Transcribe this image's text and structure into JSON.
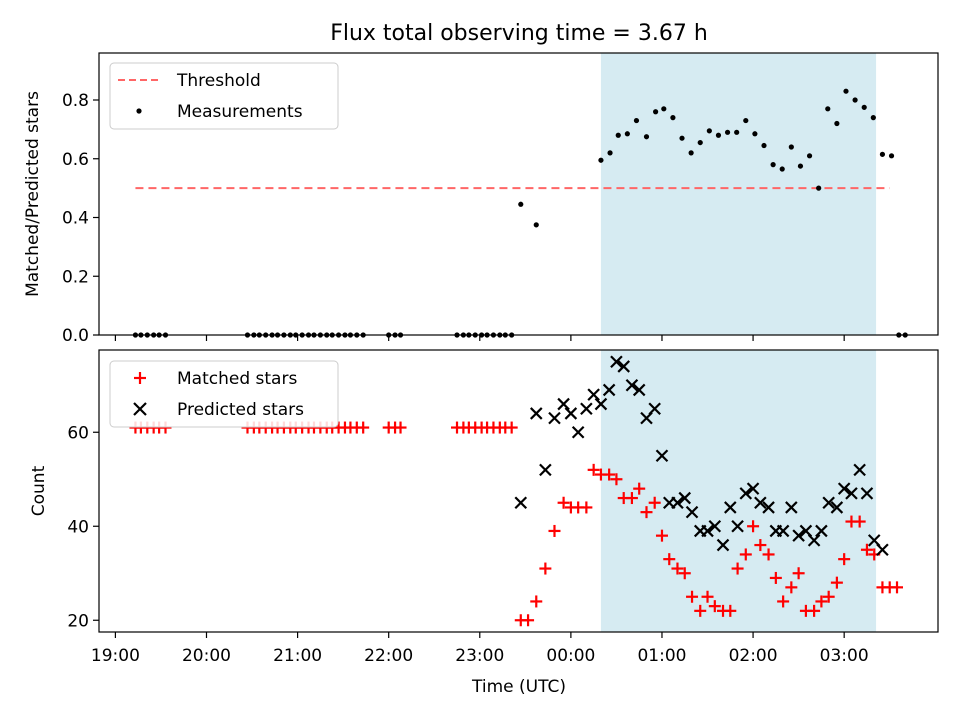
{
  "chart_data": [
    {
      "type": "scatter",
      "title": "Flux total observing time = 3.67 h",
      "ylabel": "Matched/Predicted stars",
      "xlabel": "",
      "xlim_hours": [
        18.82,
        28.03
      ],
      "ylim": [
        0.0,
        0.96
      ],
      "yticks": [
        0.0,
        0.2,
        0.4,
        0.6,
        0.8
      ],
      "ytick_labels": [
        "0.0",
        "0.2",
        "0.4",
        "0.6",
        "0.8"
      ],
      "shaded_interval_hours": [
        24.33,
        27.35
      ],
      "shaded_color": "#add8e6",
      "grid": false,
      "legend_position": "upper-left",
      "threshold": {
        "name": "Threshold",
        "value": 0.5,
        "x_range_hours": [
          19.22,
          27.5
        ],
        "color": "#ff6666",
        "style": "dashed"
      },
      "series": [
        {
          "name": "Measurements",
          "marker": "dot",
          "color": "#000000",
          "x_hours": [
            19.22,
            19.28,
            19.35,
            19.42,
            19.48,
            19.55,
            20.45,
            20.52,
            20.58,
            20.65,
            20.72,
            20.78,
            20.85,
            20.92,
            20.98,
            21.05,
            21.12,
            21.18,
            21.25,
            21.32,
            21.38,
            21.45,
            21.52,
            21.58,
            21.65,
            21.72,
            22.0,
            22.07,
            22.13,
            22.75,
            22.82,
            22.88,
            22.95,
            23.02,
            23.08,
            23.15,
            23.22,
            23.28,
            23.35,
            23.45,
            23.62,
            24.33,
            24.43,
            24.52,
            24.62,
            24.72,
            24.83,
            24.93,
            25.02,
            25.12,
            25.22,
            25.32,
            25.42,
            25.52,
            25.62,
            25.72,
            25.82,
            25.92,
            26.02,
            26.12,
            26.22,
            26.32,
            26.42,
            26.52,
            26.62,
            26.72,
            26.82,
            26.92,
            27.02,
            27.12,
            27.22,
            27.32,
            27.42,
            27.52,
            27.6,
            27.67
          ],
          "y": [
            0,
            0,
            0,
            0,
            0,
            0,
            0,
            0,
            0,
            0,
            0,
            0,
            0,
            0,
            0,
            0,
            0,
            0,
            0,
            0,
            0,
            0,
            0,
            0,
            0,
            0,
            0,
            0,
            0,
            0,
            0,
            0,
            0,
            0,
            0,
            0,
            0,
            0,
            0,
            0.445,
            0.375,
            0.595,
            0.62,
            0.68,
            0.685,
            0.73,
            0.675,
            0.76,
            0.77,
            0.74,
            0.67,
            0.62,
            0.655,
            0.695,
            0.68,
            0.69,
            0.69,
            0.73,
            0.685,
            0.645,
            0.58,
            0.565,
            0.64,
            0.575,
            0.61,
            0.5,
            0.77,
            0.72,
            0.83,
            0.8,
            0.775,
            0.74,
            0.615,
            0.61,
            0.0,
            0.0
          ]
        }
      ],
      "series_ordered_by_x_note_removed": true
    },
    {
      "type": "scatter",
      "title": "",
      "ylabel": "Count",
      "xlabel": "Time (UTC)",
      "xlim_hours": [
        18.82,
        28.03
      ],
      "ylim": [
        17.5,
        77.5
      ],
      "yticks": [
        20,
        40,
        60
      ],
      "ytick_labels": [
        "20",
        "40",
        "60"
      ],
      "xticks_hours": [
        19,
        20,
        21,
        22,
        23,
        24,
        25,
        26,
        27
      ],
      "xtick_labels": [
        "19:00",
        "20:00",
        "21:00",
        "22:00",
        "23:00",
        "00:00",
        "01:00",
        "02:00",
        "03:00"
      ],
      "shaded_interval_hours": [
        24.33,
        27.35
      ],
      "shaded_color": "#add8e6",
      "grid": false,
      "legend_position": "upper-left",
      "series": [
        {
          "name": "Matched stars",
          "marker": "plus",
          "color": "#ff0000",
          "x_hours": [
            19.22,
            19.28,
            19.35,
            19.42,
            19.48,
            19.55,
            20.45,
            20.52,
            20.58,
            20.65,
            20.72,
            20.78,
            20.85,
            20.92,
            20.98,
            21.05,
            21.12,
            21.18,
            21.25,
            21.32,
            21.38,
            21.45,
            21.52,
            21.58,
            21.65,
            21.72,
            22.0,
            22.07,
            22.13,
            22.75,
            22.82,
            22.88,
            22.95,
            23.02,
            23.08,
            23.15,
            23.22,
            23.28,
            23.35,
            23.45,
            23.53,
            23.62,
            23.72,
            23.82,
            23.92,
            24.0,
            24.08,
            24.17,
            24.25,
            24.33,
            24.42,
            24.5,
            24.58,
            24.67,
            24.75,
            24.83,
            24.92,
            25.0,
            25.08,
            25.17,
            25.25,
            25.33,
            25.42,
            25.5,
            25.58,
            25.67,
            25.75,
            25.83,
            25.92,
            26.0,
            26.08,
            26.17,
            26.25,
            26.33,
            26.42,
            26.5,
            26.58,
            26.67,
            26.75,
            26.83,
            26.92,
            27.0,
            27.08,
            27.17,
            27.25,
            27.33,
            27.42,
            27.5,
            27.58
          ],
          "y": [
            61,
            61,
            61,
            61,
            61,
            61,
            61,
            61,
            61,
            61,
            61,
            61,
            61,
            61,
            61,
            61,
            61,
            61,
            61,
            61,
            61,
            61,
            61,
            61,
            61,
            61,
            61,
            61,
            61,
            61,
            61,
            61,
            61,
            61,
            61,
            61,
            61,
            61,
            61,
            20,
            20,
            24,
            31,
            39,
            45,
            44,
            44,
            44,
            52,
            51,
            51,
            50,
            46,
            46,
            48,
            43,
            45,
            38,
            33,
            31,
            30,
            25,
            22,
            25,
            23,
            22,
            22,
            31,
            34,
            40,
            36,
            34,
            29,
            24,
            27,
            30,
            22,
            22,
            24,
            25,
            28,
            33,
            41,
            41,
            35,
            34,
            27,
            27,
            27
          ]
        },
        {
          "name": "Predicted stars",
          "marker": "x",
          "color": "#000000",
          "x_hours": [
            23.45,
            23.62,
            23.72,
            23.82,
            23.92,
            24.0,
            24.08,
            24.17,
            24.25,
            24.33,
            24.42,
            24.5,
            24.58,
            24.67,
            24.75,
            24.83,
            24.92,
            25.0,
            25.08,
            25.17,
            25.25,
            25.33,
            25.42,
            25.5,
            25.58,
            25.67,
            25.75,
            25.83,
            25.92,
            26.0,
            26.08,
            26.17,
            26.25,
            26.33,
            26.42,
            26.5,
            26.58,
            26.67,
            26.75,
            26.83,
            26.92,
            27.0,
            27.08,
            27.17,
            27.25,
            27.33,
            27.42
          ],
          "y": [
            45,
            64,
            52,
            63,
            66,
            64,
            60,
            65,
            68,
            66,
            69,
            75,
            74,
            70,
            69,
            63,
            65,
            55,
            45,
            45,
            46,
            43,
            39,
            39,
            40,
            36,
            44,
            40,
            47,
            48,
            45,
            44,
            39,
            39,
            44,
            38,
            39,
            37,
            39,
            45,
            44,
            48,
            47,
            52,
            47,
            37,
            35
          ]
        }
      ]
    }
  ]
}
